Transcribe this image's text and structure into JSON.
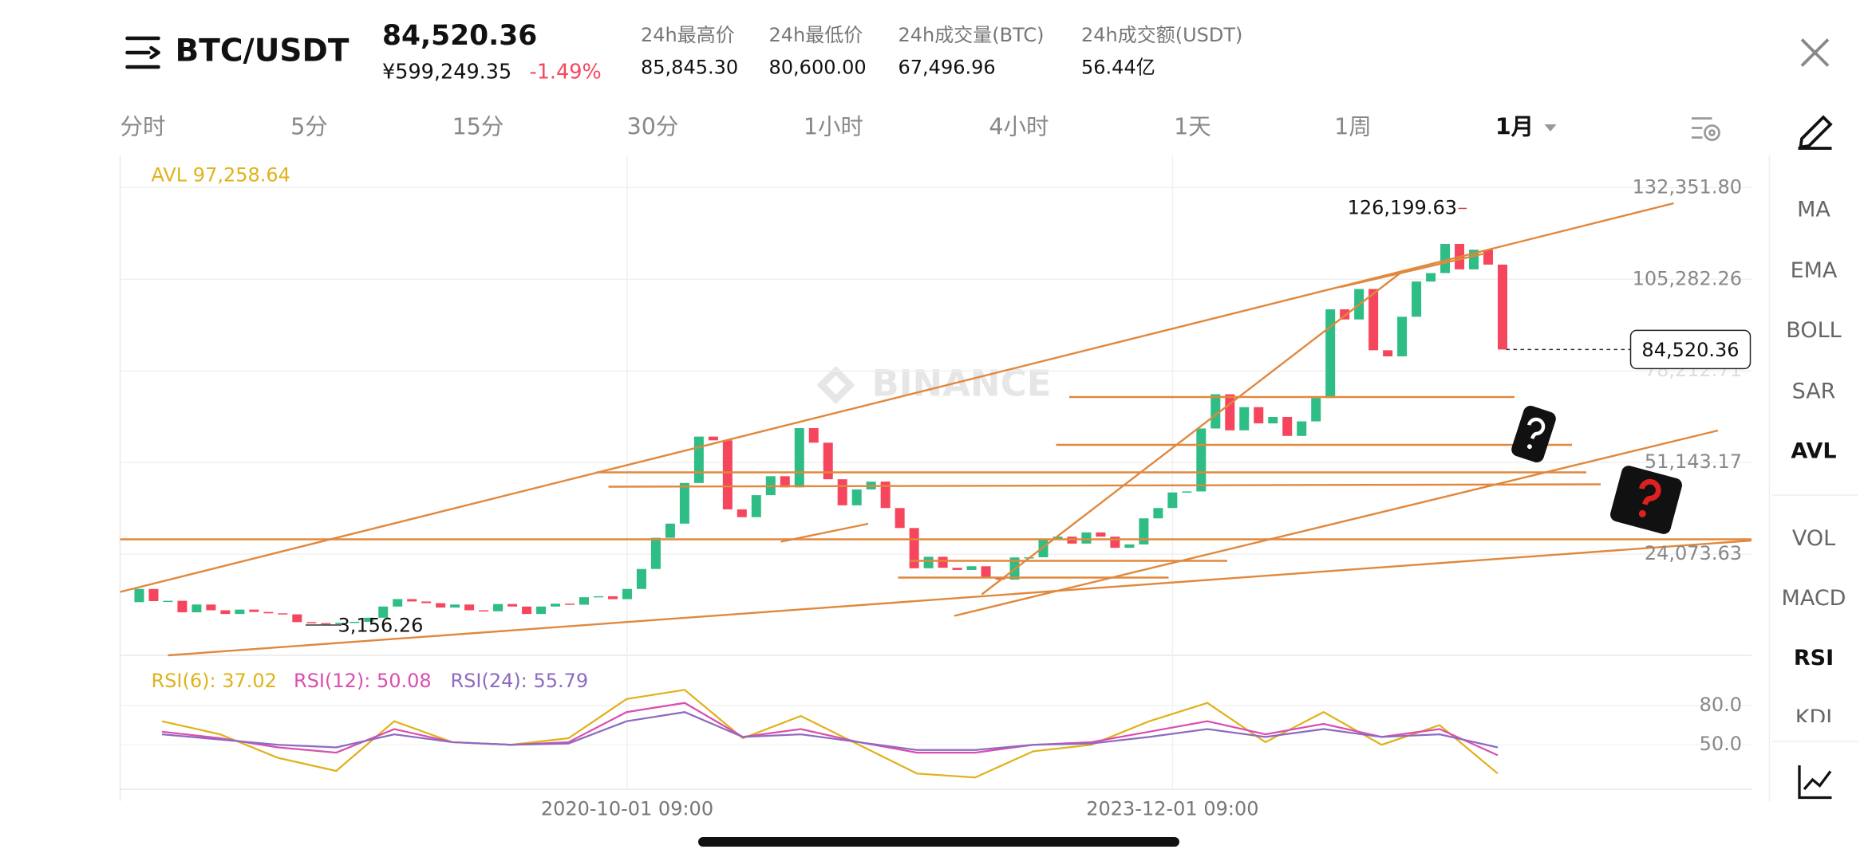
{
  "header": {
    "symbol": "BTC/USDT",
    "price": "84,520.36",
    "price_cny": "¥599,249.35",
    "change": "-1.49%",
    "stats": [
      {
        "label": "24h最高价",
        "value": "85,845.30"
      },
      {
        "label": "24h最低价",
        "value": "80,600.00"
      },
      {
        "label": "24h成交量(BTC)",
        "value": "67,496.96"
      },
      {
        "label": "24h成交额(USDT)",
        "value": "56.44亿"
      }
    ]
  },
  "tabs": [
    "分时",
    "5分",
    "15分",
    "30分",
    "1小时",
    "4小时",
    "1天",
    "1周",
    "1月"
  ],
  "indicators": [
    "MA",
    "EMA",
    "BOLL",
    "SAR",
    "AVL",
    "VOL",
    "MACD",
    "RSI",
    "KDJ"
  ],
  "watermark": "BINANCE",
  "chart_data": [
    {
      "type": "candlestick",
      "avl_label": "AVL 97,258.64",
      "values": [
        9900,
        13800,
        10200,
        10300,
        6900,
        9200,
        7500,
        6400,
        7700,
        7000,
        6600,
        6300,
        4000,
        3700,
        3400,
        3800,
        4100,
        5300,
        8600,
        10800,
        10100,
        9600,
        8300,
        9200,
        7500,
        7200,
        9350,
        8600,
        6400,
        8600,
        9450,
        9140,
        11350,
        11650,
        10780,
        13800,
        19700,
        28900,
        33100,
        45100,
        58800,
        57700,
        37300,
        35000,
        41500,
        47100,
        43800,
        61300,
        57000,
        46200,
        38500,
        43200,
        45500,
        37700,
        31800,
        19900,
        23300,
        20050,
        19400,
        20500,
        17150,
        16550,
        23100,
        23150,
        28450,
        29250,
        27200,
        30500,
        29250,
        25950,
        26950,
        34650,
        37700,
        42300,
        42600,
        61200,
        71300,
        60650,
        67500,
        62700,
        64600,
        59000,
        63300,
        70200,
        96400,
        93400,
        102400,
        84300,
        82500,
        94200,
        104600,
        107100,
        115700,
        108200,
        114000,
        109600,
        84520.36
      ],
      "up_color": "#2ebd85",
      "down_color": "#f6465d",
      "ylim": [
        -5807,
        141844
      ],
      "yticks": [
        {
          "value": 132351.8,
          "label": "132,351.80"
        },
        {
          "value": 105282.26,
          "label": "105,282.26"
        },
        {
          "value": 78212.71,
          "label": "78,212.71"
        },
        {
          "value": 51143.17,
          "label": "51,143.17"
        },
        {
          "value": 24073.63,
          "label": "24,073.63"
        }
      ],
      "xticks": [
        {
          "value": 35,
          "label": "2020-10-01 09:00"
        },
        {
          "value": 73,
          "label": "2023-12-01 09:00"
        }
      ],
      "high_label": {
        "value": 126199.63,
        "label": "126,199.63"
      },
      "low_label": {
        "value": 3156.26,
        "label": "3,156.26"
      },
      "current_price": {
        "value": 84520.36,
        "label": "84,520.36"
      },
      "grid": true
    },
    {
      "type": "line",
      "series": [
        {
          "name": "RSI(6): 37.02",
          "color": "#e0b21c",
          "values": [
            68,
            58,
            40,
            30,
            68,
            52,
            50,
            55,
            85,
            92,
            55,
            72,
            50,
            28,
            25,
            45,
            50,
            68,
            82,
            52,
            75,
            50,
            65,
            28
          ]
        },
        {
          "name": "RSI(12): 50.08",
          "color": "#d94fb0",
          "values": [
            60,
            55,
            48,
            44,
            62,
            52,
            50,
            52,
            75,
            82,
            56,
            62,
            52,
            44,
            44,
            50,
            52,
            60,
            68,
            58,
            66,
            56,
            62,
            42
          ]
        },
        {
          "name": "RSI(24): 55.79",
          "color": "#8d6bc0",
          "values": [
            58,
            54,
            50,
            48,
            58,
            52,
            50,
            51,
            68,
            75,
            56,
            58,
            52,
            46,
            46,
            50,
            51,
            56,
            62,
            56,
            62,
            56,
            58,
            48
          ]
        }
      ],
      "ylim": [
        16,
        112
      ],
      "yticks": [
        {
          "value": 80,
          "label": "80.0"
        },
        {
          "value": 50,
          "label": "50.0"
        }
      ]
    }
  ]
}
